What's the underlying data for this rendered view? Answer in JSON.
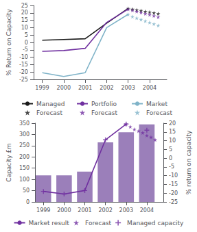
{
  "chart_data": [
    {
      "type": "line",
      "ylabel": "% Return on Capacity",
      "xlim": [
        1998.6,
        2004.8
      ],
      "xticks": [
        1999,
        2000,
        2001,
        2002,
        2003,
        2004
      ],
      "ylim": [
        -25,
        25
      ],
      "yticks": [
        -25,
        -20,
        -15,
        -10,
        -5,
        0,
        5,
        10,
        15,
        20,
        25
      ],
      "grid": false,
      "series": [
        {
          "name": "Managed",
          "type": "line",
          "line_style": "solid",
          "color": "#1a1a1a",
          "x": [
            1999,
            2000,
            2001,
            2002,
            2003
          ],
          "values": [
            1.5,
            2.0,
            2.5,
            13.0,
            23.0
          ]
        },
        {
          "name": "Portfolio",
          "type": "line",
          "line_style": "solid",
          "color": "#7030a0",
          "x": [
            1999,
            2000,
            2001,
            2002,
            2003
          ],
          "values": [
            -6.0,
            -5.5,
            -4.0,
            13.5,
            22.5
          ]
        },
        {
          "name": "Market",
          "type": "line",
          "line_style": "solid",
          "color": "#7fb3c8",
          "x": [
            1999,
            2000,
            2001,
            2002,
            2003
          ],
          "values": [
            -20.5,
            -23.0,
            -20.5,
            10.0,
            19.0
          ]
        },
        {
          "name": "Forecast",
          "type": "scatter",
          "marker": "star",
          "color": "#1a1a1a",
          "x": [
            2003,
            2003.2,
            2003.4,
            2003.6,
            2003.8,
            2004,
            2004.2,
            2004.4
          ],
          "values": [
            23.0,
            22.5,
            22.0,
            21.5,
            21.0,
            20.5,
            20.0,
            19.5
          ]
        },
        {
          "name": "Forecast",
          "type": "scatter",
          "marker": "star",
          "color": "#7030a0",
          "x": [
            2003,
            2003.2,
            2003.4,
            2003.6,
            2003.8,
            2004,
            2004.2,
            2004.4
          ],
          "values": [
            22.5,
            21.8,
            21.0,
            20.3,
            19.5,
            18.8,
            18.0,
            17.2
          ]
        },
        {
          "name": "Forecast",
          "type": "scatter",
          "marker": "star",
          "color": "#7fb3c8",
          "x": [
            2003,
            2003.2,
            2003.4,
            2003.6,
            2003.8,
            2004,
            2004.2,
            2004.4
          ],
          "values": [
            19.0,
            17.5,
            16.5,
            15.5,
            14.5,
            13.5,
            12.5,
            11.5
          ]
        }
      ]
    },
    {
      "type": "bar",
      "ylabel": "Capacity £m",
      "y2label": "% return on capacity",
      "xlim": [
        1998.6,
        2004.8
      ],
      "xticks": [
        1999,
        2000,
        2001,
        2002,
        2003,
        2004
      ],
      "ylim": [
        0,
        350
      ],
      "yticks": [
        0,
        50,
        100,
        150,
        200,
        250,
        300,
        350
      ],
      "y2lim": [
        -25,
        20
      ],
      "y2ticks": [
        -25,
        -20,
        -15,
        -10,
        -5,
        0,
        5,
        10,
        15,
        20
      ],
      "grid": false,
      "series": [
        {
          "type": "bar",
          "color": "#9b7fba",
          "x": [
            1999,
            2000,
            2001,
            2002,
            2003,
            2004
          ],
          "values": [
            118,
            118,
            135,
            265,
            310,
            345
          ]
        },
        {
          "name": "Market result",
          "type": "line",
          "line_style": "solid",
          "axis": "y2",
          "color": "#7030a0",
          "x": [
            1999,
            2000,
            2001,
            2002,
            2003
          ],
          "values": [
            -19.0,
            -20.5,
            -18.5,
            10.5,
            19.5
          ]
        },
        {
          "name": "Forecast",
          "type": "scatter",
          "marker": "star",
          "axis": "y2",
          "color": "#7030a0",
          "x": [
            2003,
            2003.2,
            2003.4,
            2003.6,
            2003.8,
            2004,
            2004.2,
            2004.4
          ],
          "values": [
            19.5,
            18.0,
            16.5,
            15.5,
            14.5,
            13.0,
            12.0,
            10.5
          ]
        },
        {
          "name": "Managed capacity",
          "type": "scatter",
          "marker": "plus",
          "axis": "y2",
          "color": "#7030a0",
          "x": [
            1999,
            2000,
            2001,
            2002,
            2003,
            2004
          ],
          "values": [
            -19.0,
            -20.5,
            -18.5,
            10.5,
            19.5,
            16.0
          ]
        }
      ]
    }
  ]
}
